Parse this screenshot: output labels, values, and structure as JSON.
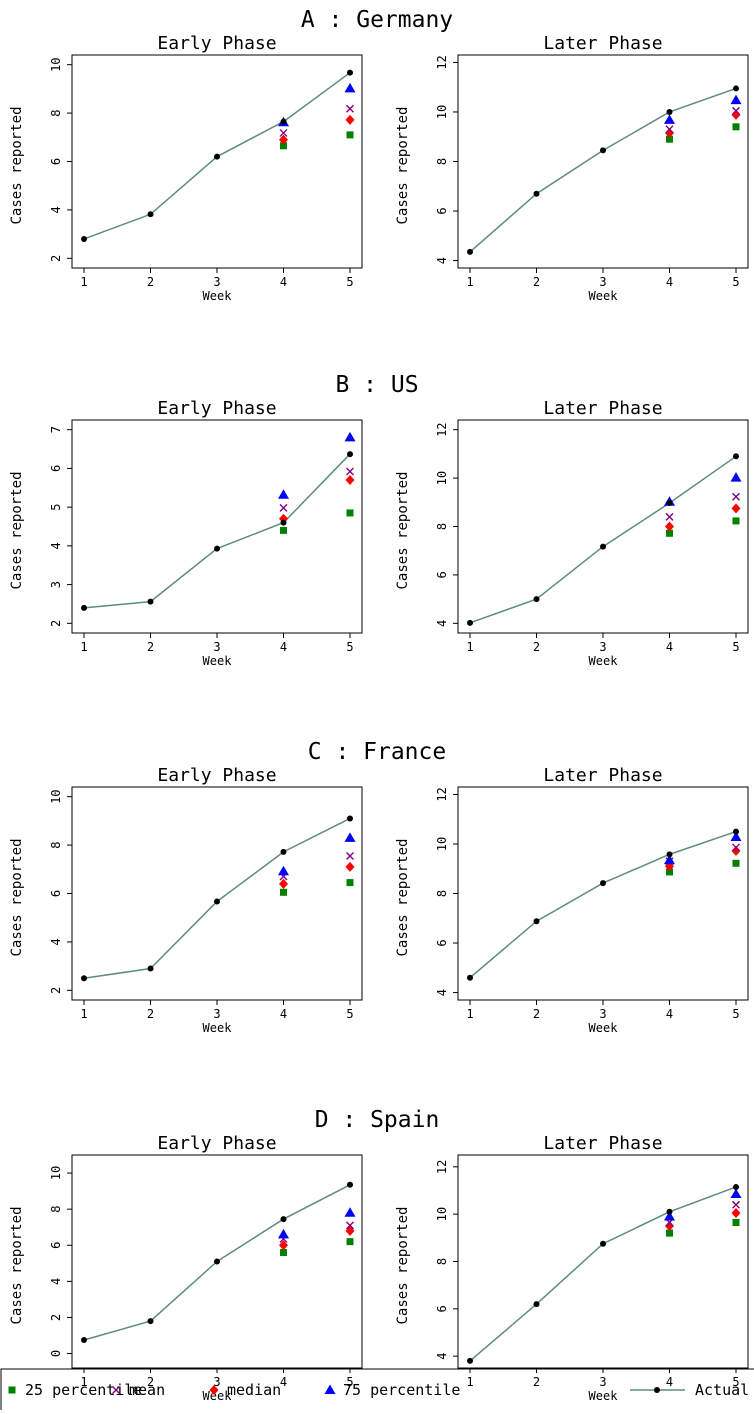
{
  "legend": {
    "items": [
      {
        "key": "p25",
        "label": "25 percentile",
        "symbol": "square",
        "color": "#008000"
      },
      {
        "key": "mean",
        "label": "mean",
        "symbol": "x",
        "color": "#800080"
      },
      {
        "key": "median",
        "label": "median",
        "symbol": "diamond",
        "color": "#ff0000"
      },
      {
        "key": "p75",
        "label": "75 percentile",
        "symbol": "triangle",
        "color": "#0000ff"
      },
      {
        "key": "actual",
        "label": "Actual",
        "symbol": "line-dot",
        "color": "#000000",
        "line_color": "#5f8a7f"
      }
    ]
  },
  "chart_data": [
    {
      "type": "line",
      "panel_title": "A : Germany",
      "title": "Early Phase",
      "xlabel": "Week",
      "ylabel": "Cases reported",
      "x": [
        1,
        2,
        3,
        4,
        5
      ],
      "xticks": [
        1,
        2,
        3,
        4,
        5
      ],
      "ylim": [
        1.6,
        10.4
      ],
      "yticks": [
        2,
        4,
        6,
        8,
        10
      ],
      "grid": false,
      "series": [
        {
          "name": "Actual",
          "x": [
            1,
            2,
            3,
            4,
            5
          ],
          "values": [
            2.8,
            3.82,
            6.2,
            7.65,
            9.67
          ]
        },
        {
          "name": "25 percentile",
          "x": [
            4,
            5
          ],
          "values": [
            6.65,
            7.1
          ]
        },
        {
          "name": "median",
          "x": [
            4,
            5
          ],
          "values": [
            6.9,
            7.72
          ]
        },
        {
          "name": "mean",
          "x": [
            4,
            5
          ],
          "values": [
            7.18,
            8.18
          ]
        },
        {
          "name": "75 percentile",
          "x": [
            4,
            5
          ],
          "values": [
            7.62,
            9.02
          ]
        }
      ]
    },
    {
      "type": "line",
      "panel_title": "A : Germany",
      "title": "Later Phase",
      "xlabel": "Week",
      "ylabel": "Cases reported",
      "x": [
        1,
        2,
        3,
        4,
        5
      ],
      "xticks": [
        1,
        2,
        3,
        4,
        5
      ],
      "ylim": [
        3.7,
        12.3
      ],
      "yticks": [
        4,
        6,
        8,
        10,
        12
      ],
      "grid": false,
      "series": [
        {
          "name": "Actual",
          "x": [
            1,
            2,
            3,
            4,
            5
          ],
          "values": [
            4.35,
            6.7,
            8.45,
            10.0,
            10.95
          ]
        },
        {
          "name": "25 percentile",
          "x": [
            4,
            5
          ],
          "values": [
            8.9,
            9.4
          ]
        },
        {
          "name": "median",
          "x": [
            4,
            5
          ],
          "values": [
            9.15,
            9.88
          ]
        },
        {
          "name": "mean",
          "x": [
            4,
            5
          ],
          "values": [
            9.3,
            10.05
          ]
        },
        {
          "name": "75 percentile",
          "x": [
            4,
            5
          ],
          "values": [
            9.68,
            10.48
          ]
        }
      ]
    },
    {
      "type": "line",
      "panel_title": "B : US",
      "title": "Early Phase",
      "xlabel": "Week",
      "ylabel": "Cases reported",
      "x": [
        1,
        2,
        3,
        4,
        5
      ],
      "xticks": [
        1,
        2,
        3,
        4,
        5
      ],
      "ylim": [
        1.75,
        7.25
      ],
      "yticks": [
        2,
        3,
        4,
        5,
        6,
        7
      ],
      "grid": false,
      "series": [
        {
          "name": "Actual",
          "x": [
            1,
            2,
            3,
            4,
            5
          ],
          "values": [
            2.4,
            2.56,
            3.93,
            4.6,
            6.37
          ]
        },
        {
          "name": "25 percentile",
          "x": [
            4,
            5
          ],
          "values": [
            4.4,
            4.85
          ]
        },
        {
          "name": "median",
          "x": [
            4,
            5
          ],
          "values": [
            4.7,
            5.7
          ]
        },
        {
          "name": "mean",
          "x": [
            4,
            5
          ],
          "values": [
            4.98,
            5.92
          ]
        },
        {
          "name": "75 percentile",
          "x": [
            4,
            5
          ],
          "values": [
            5.32,
            6.8
          ]
        }
      ]
    },
    {
      "type": "line",
      "panel_title": "B : US",
      "title": "Later Phase",
      "xlabel": "Week",
      "ylabel": "Cases reported",
      "x": [
        1,
        2,
        3,
        4,
        5
      ],
      "xticks": [
        1,
        2,
        3,
        4,
        5
      ],
      "ylim": [
        3.6,
        12.4
      ],
      "yticks": [
        4,
        6,
        8,
        10,
        12
      ],
      "grid": false,
      "series": [
        {
          "name": "Actual",
          "x": [
            1,
            2,
            3,
            4,
            5
          ],
          "values": [
            4.02,
            5.0,
            7.17,
            8.97,
            10.9
          ]
        },
        {
          "name": "25 percentile",
          "x": [
            4,
            5
          ],
          "values": [
            7.72,
            8.23
          ]
        },
        {
          "name": "median",
          "x": [
            4,
            5
          ],
          "values": [
            8.0,
            8.75
          ]
        },
        {
          "name": "mean",
          "x": [
            4,
            5
          ],
          "values": [
            8.4,
            9.23
          ]
        },
        {
          "name": "75 percentile",
          "x": [
            4,
            5
          ],
          "values": [
            9.02,
            10.02
          ]
        }
      ]
    },
    {
      "type": "line",
      "panel_title": "C : France",
      "title": "Early Phase",
      "xlabel": "Week",
      "ylabel": "Cases reported",
      "x": [
        1,
        2,
        3,
        4,
        5
      ],
      "xticks": [
        1,
        2,
        3,
        4,
        5
      ],
      "ylim": [
        1.6,
        10.4
      ],
      "yticks": [
        2,
        4,
        6,
        8,
        10
      ],
      "grid": false,
      "series": [
        {
          "name": "Actual",
          "x": [
            1,
            2,
            3,
            4,
            5
          ],
          "values": [
            2.5,
            2.9,
            5.67,
            7.72,
            9.1
          ]
        },
        {
          "name": "25 percentile",
          "x": [
            4,
            5
          ],
          "values": [
            6.05,
            6.45
          ]
        },
        {
          "name": "median",
          "x": [
            4,
            5
          ],
          "values": [
            6.4,
            7.1
          ]
        },
        {
          "name": "mean",
          "x": [
            4,
            5
          ],
          "values": [
            6.7,
            7.55
          ]
        },
        {
          "name": "75 percentile",
          "x": [
            4,
            5
          ],
          "values": [
            6.92,
            8.3
          ]
        }
      ]
    },
    {
      "type": "line",
      "panel_title": "C : France",
      "title": "Later Phase",
      "xlabel": "Week",
      "ylabel": "Cases reported",
      "x": [
        1,
        2,
        3,
        4,
        5
      ],
      "xticks": [
        1,
        2,
        3,
        4,
        5
      ],
      "ylim": [
        3.7,
        12.3
      ],
      "yticks": [
        4,
        6,
        8,
        10,
        12
      ],
      "grid": false,
      "series": [
        {
          "name": "Actual",
          "x": [
            1,
            2,
            3,
            4,
            5
          ],
          "values": [
            4.6,
            6.88,
            8.42,
            9.58,
            10.5
          ]
        },
        {
          "name": "25 percentile",
          "x": [
            4,
            5
          ],
          "values": [
            8.87,
            9.22
          ]
        },
        {
          "name": "median",
          "x": [
            4,
            5
          ],
          "values": [
            9.1,
            9.72
          ]
        },
        {
          "name": "mean",
          "x": [
            4,
            5
          ],
          "values": [
            9.3,
            9.86
          ]
        },
        {
          "name": "75 percentile",
          "x": [
            4,
            5
          ],
          "values": [
            9.35,
            10.28
          ]
        }
      ]
    },
    {
      "type": "line",
      "panel_title": "D : Spain",
      "title": "Early Phase",
      "xlabel": "Week",
      "ylabel": "Cases reported",
      "x": [
        1,
        2,
        3,
        4,
        5
      ],
      "xticks": [
        1,
        2,
        3,
        4,
        5
      ],
      "ylim": [
        -0.8,
        11.0
      ],
      "yticks": [
        0,
        2,
        4,
        6,
        8,
        10
      ],
      "grid": false,
      "series": [
        {
          "name": "Actual",
          "x": [
            1,
            2,
            3,
            4,
            5
          ],
          "values": [
            0.75,
            1.8,
            5.1,
            7.45,
            9.35
          ]
        },
        {
          "name": "25 percentile",
          "x": [
            4,
            5
          ],
          "values": [
            5.6,
            6.2
          ]
        },
        {
          "name": "median",
          "x": [
            4,
            5
          ],
          "values": [
            6.0,
            6.8
          ]
        },
        {
          "name": "mean",
          "x": [
            4,
            5
          ],
          "values": [
            6.35,
            7.1
          ]
        },
        {
          "name": "75 percentile",
          "x": [
            4,
            5
          ],
          "values": [
            6.6,
            7.8
          ]
        }
      ]
    },
    {
      "type": "line",
      "panel_title": "D : Spain",
      "title": "Later Phase",
      "xlabel": "Week",
      "ylabel": "Cases reported",
      "x": [
        1,
        2,
        3,
        4,
        5
      ],
      "xticks": [
        1,
        2,
        3,
        4,
        5
      ],
      "ylim": [
        3.5,
        12.5
      ],
      "yticks": [
        4,
        6,
        8,
        10,
        12
      ],
      "grid": false,
      "series": [
        {
          "name": "Actual",
          "x": [
            1,
            2,
            3,
            4,
            5
          ],
          "values": [
            3.8,
            6.2,
            8.75,
            10.1,
            11.15
          ]
        },
        {
          "name": "25 percentile",
          "x": [
            4,
            5
          ],
          "values": [
            9.2,
            9.65
          ]
        },
        {
          "name": "median",
          "x": [
            4,
            5
          ],
          "values": [
            9.5,
            10.05
          ]
        },
        {
          "name": "mean",
          "x": [
            4,
            5
          ],
          "values": [
            9.65,
            10.4
          ]
        },
        {
          "name": "75 percentile",
          "x": [
            4,
            5
          ],
          "values": [
            9.9,
            10.85
          ]
        }
      ]
    }
  ]
}
